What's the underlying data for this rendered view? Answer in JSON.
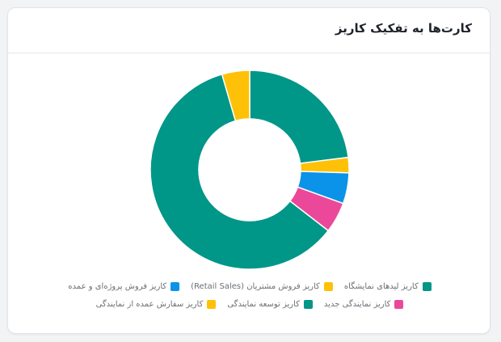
{
  "card": {
    "title": "کارت‌ها به تفکیک کاریز"
  },
  "chart_data": {
    "type": "pie",
    "title": "",
    "donut": true,
    "legend_position": "bottom",
    "series": [
      {
        "name": "کاریز لیدهای نمایشگاه",
        "value": 23,
        "color": "#009688"
      },
      {
        "name": "کاریز فروش مشتریان (Retail Sales)",
        "value": 2.5,
        "color": "#FFC107"
      },
      {
        "name": "کاریز فروش پروژه‌ای و عمده",
        "value": 5,
        "color": "#0A93E8"
      },
      {
        "name": "کاریز نمایندگی جدید",
        "value": 5,
        "color": "#EC4899"
      },
      {
        "name": "کاریز توسعه نمایندگی",
        "value": 60,
        "color": "#009688"
      },
      {
        "name": "کاریز سفارش عمده از نمایندگی",
        "value": 4.5,
        "color": "#FFC107"
      }
    ]
  }
}
